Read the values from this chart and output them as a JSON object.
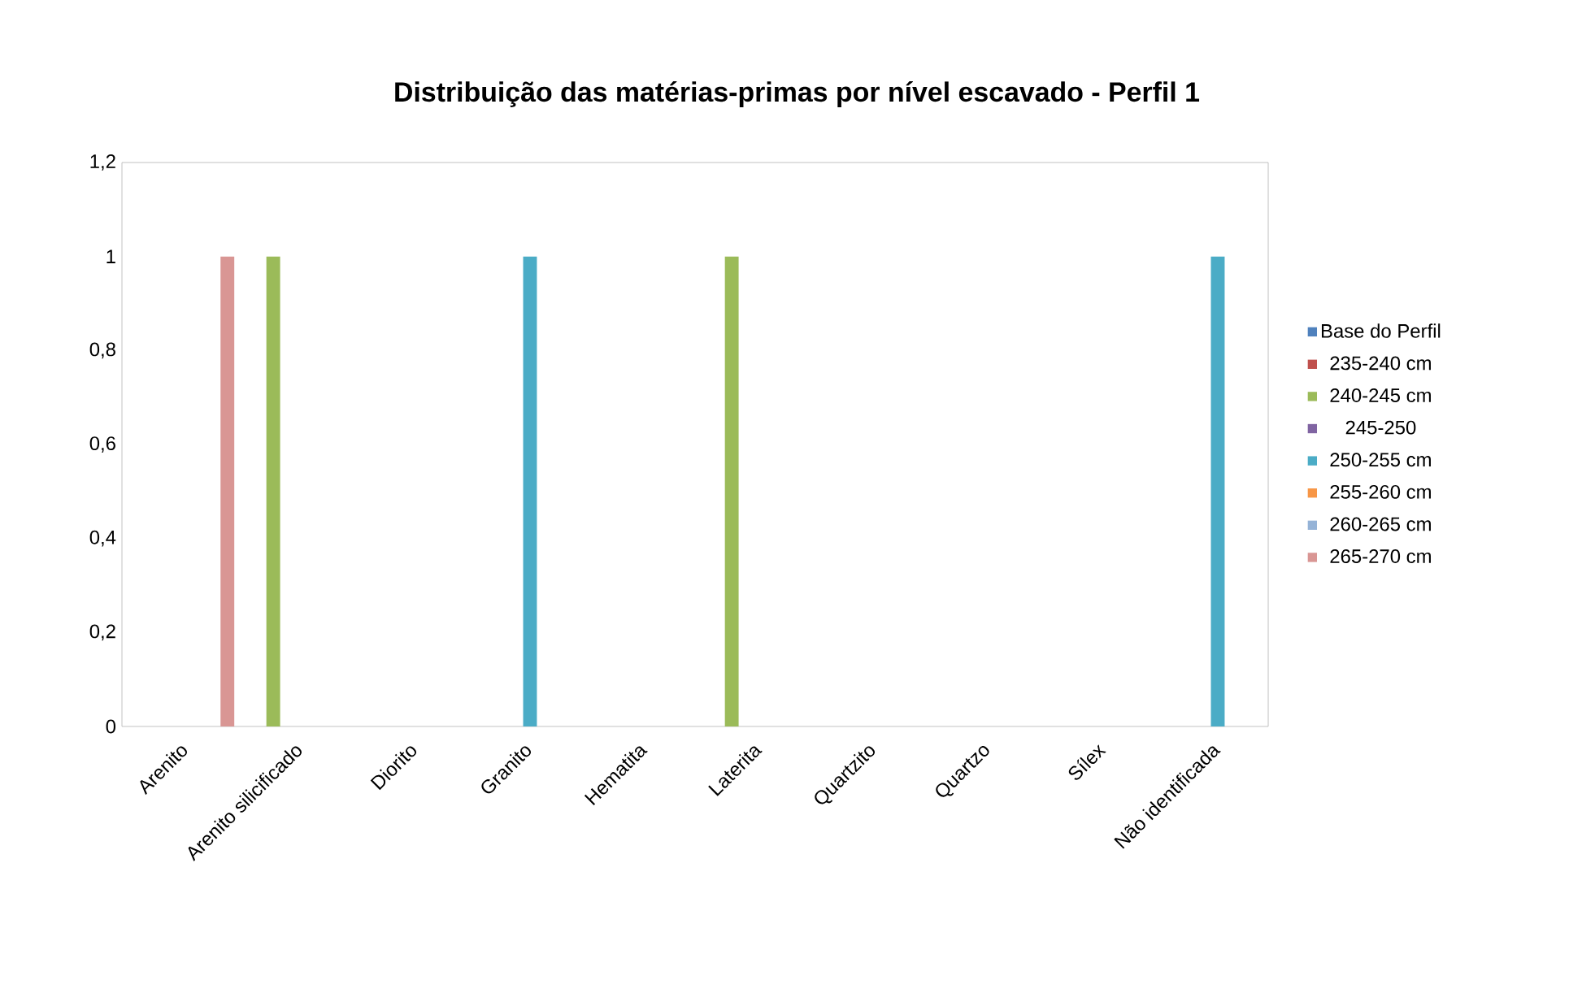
{
  "chart_data": {
    "type": "bar",
    "title": "Distribuição das matérias-primas por nível escavado - Perfil 1",
    "categories": [
      "Arenito",
      "Arenito silicificado",
      "Diorito",
      "Granito",
      "Hematita",
      "Laterita",
      "Quartzito",
      "Quartzo",
      "Sílex",
      "Não identificada"
    ],
    "series": [
      {
        "name": "Base do Perfil",
        "color": "#4f81bd",
        "values": [
          0,
          0,
          0,
          0,
          0,
          0,
          0,
          0,
          0,
          0
        ]
      },
      {
        "name": "235-240 cm",
        "color": "#c0504d",
        "values": [
          0,
          0,
          0,
          0,
          0,
          0,
          0,
          0,
          0,
          0
        ]
      },
      {
        "name": "240-245 cm",
        "color": "#9bbb59",
        "values": [
          0,
          1,
          0,
          0,
          0,
          1,
          0,
          0,
          0,
          0
        ]
      },
      {
        "name": "245-250",
        "color": "#8064a2",
        "values": [
          0,
          0,
          0,
          0,
          0,
          0,
          0,
          0,
          0,
          0
        ]
      },
      {
        "name": "250-255 cm",
        "color": "#4bacc6",
        "values": [
          0,
          0,
          0,
          1,
          0,
          0,
          0,
          0,
          0,
          1
        ]
      },
      {
        "name": "255-260 cm",
        "color": "#f79646",
        "values": [
          0,
          0,
          0,
          0,
          0,
          0,
          0,
          0,
          0,
          0
        ]
      },
      {
        "name": "260-265 cm",
        "color": "#95b3d7",
        "values": [
          0,
          0,
          0,
          0,
          0,
          0,
          0,
          0,
          0,
          0
        ]
      },
      {
        "name": "265-270 cm",
        "color": "#d99694",
        "values": [
          1,
          0,
          0,
          0,
          0,
          0,
          0,
          0,
          0,
          0
        ]
      }
    ],
    "ylim": [
      0,
      1.2
    ],
    "yticks": [
      {
        "value": 0,
        "label": "0"
      },
      {
        "value": 0.2,
        "label": "0,2"
      },
      {
        "value": 0.4,
        "label": "0,4"
      },
      {
        "value": 0.6,
        "label": "0,6"
      },
      {
        "value": 0.8,
        "label": "0,8"
      },
      {
        "value": 1,
        "label": "1"
      },
      {
        "value": 1.2,
        "label": "1,2"
      }
    ],
    "legend": "right"
  }
}
